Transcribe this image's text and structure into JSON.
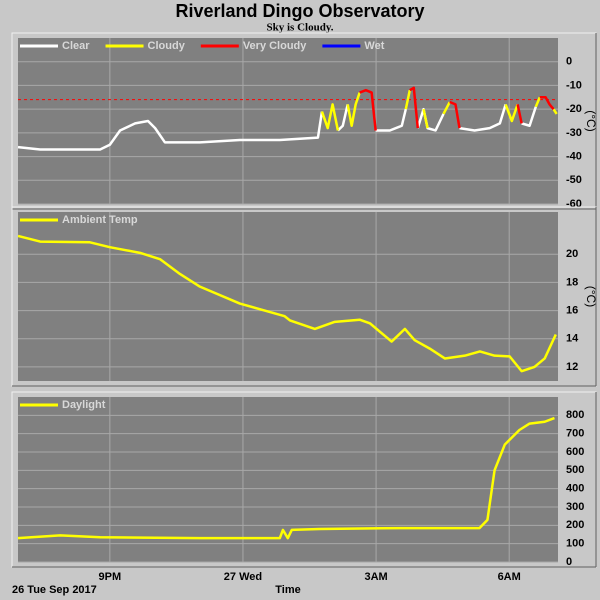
{
  "title": "Riverland Dingo Observatory",
  "subtitle": "Sky is Cloudy.",
  "chart_data": [
    {
      "type": "line",
      "ylabel": "(°C)",
      "ylim": [
        -60,
        10
      ],
      "yticks": [
        0,
        -10,
        -20,
        -30,
        -40,
        -50,
        -60
      ],
      "grid": true,
      "threshold": -16,
      "threshold_color": "#ff0000",
      "x": [
        18.93,
        19.43,
        20.1,
        20.78,
        21.0,
        21.23,
        21.57,
        21.86,
        22.02,
        22.24,
        23.03,
        23.93,
        24.83,
        25.69,
        25.78,
        25.91,
        26.02,
        26.14,
        26.25,
        26.36,
        26.45,
        26.54,
        26.63,
        26.77,
        26.9,
        26.99,
        27.31,
        27.58,
        27.67,
        27.76,
        27.85,
        27.94,
        28.07,
        28.16,
        28.34,
        28.52,
        28.66,
        28.79,
        28.88,
        29.22,
        29.56,
        29.79,
        29.92,
        30.06,
        30.19,
        30.28,
        30.46,
        30.6,
        30.69,
        30.82,
        30.91,
        31.0,
        31.07
      ],
      "series": [
        {
          "name": "Clear",
          "color": "#ffffff",
          "values": [
            -36,
            -37,
            -37,
            -37,
            -35,
            -29,
            -26,
            -25,
            -28,
            -34,
            -34,
            -33,
            -33,
            -32,
            -21,
            null,
            null,
            -29,
            -27,
            -18,
            null,
            null,
            null,
            null,
            null,
            -29,
            -29,
            -27,
            -20,
            null,
            null,
            -28,
            -20,
            -28,
            -29,
            -22,
            null,
            null,
            -28,
            -29,
            -28,
            -26,
            -18,
            null,
            null,
            -26,
            -27,
            -19,
            null,
            null,
            null,
            null,
            null
          ]
        },
        {
          "name": "Cloudy",
          "color": "#ffff00",
          "values": [
            null,
            null,
            null,
            null,
            null,
            null,
            null,
            null,
            null,
            null,
            null,
            null,
            null,
            null,
            -21,
            -28,
            -18,
            -29,
            null,
            -18,
            -27,
            -18,
            -13,
            null,
            null,
            null,
            null,
            null,
            -20,
            -12,
            null,
            null,
            -20,
            -28,
            null,
            -22,
            -17,
            null,
            null,
            null,
            null,
            null,
            -18,
            -25,
            -18,
            null,
            null,
            -19,
            -15,
            null,
            null,
            -20,
            -22
          ]
        },
        {
          "name": "Very Cloudy",
          "color": "#ff0000",
          "values": [
            null,
            null,
            null,
            null,
            null,
            null,
            null,
            null,
            null,
            null,
            null,
            null,
            null,
            null,
            null,
            null,
            null,
            null,
            null,
            null,
            null,
            null,
            -13,
            -12,
            -13,
            -29,
            null,
            null,
            null,
            -12,
            -11,
            -28,
            null,
            null,
            null,
            null,
            -17,
            -18,
            -28,
            null,
            null,
            null,
            null,
            null,
            -18,
            -26,
            null,
            null,
            -15,
            -15,
            -18,
            -20,
            null
          ]
        },
        {
          "name": "Wet",
          "color": "#0000ff",
          "values": [
            null,
            null,
            null,
            null,
            null,
            null,
            null,
            null,
            null,
            null,
            null,
            null,
            null,
            null,
            null,
            null,
            null,
            null,
            null,
            null,
            null,
            null,
            null,
            null,
            null,
            null,
            null,
            null,
            null,
            null,
            null,
            null,
            null,
            null,
            null,
            null,
            null,
            null,
            null,
            null,
            null,
            null,
            null,
            null,
            null,
            null,
            null,
            null,
            null,
            null,
            null,
            null,
            null
          ]
        }
      ]
    },
    {
      "type": "line",
      "ylabel": "(°C)",
      "ylim": [
        11,
        23
      ],
      "yticks": [
        12,
        14,
        16,
        18,
        20
      ],
      "grid": true,
      "x": [
        18.93,
        19.43,
        20.55,
        21.0,
        21.68,
        22.13,
        22.58,
        23.03,
        23.93,
        24.49,
        24.94,
        25.06,
        25.62,
        26.07,
        26.63,
        26.86,
        27.2,
        27.35,
        27.65,
        27.87,
        28.21,
        28.55,
        29.0,
        29.34,
        29.67,
        30.01,
        30.28,
        30.57,
        30.8,
        31.05
      ],
      "series": [
        {
          "name": "Ambient Temp",
          "color": "#ffff00",
          "values": [
            21.3,
            20.9,
            20.85,
            20.5,
            20.1,
            19.65,
            18.6,
            17.7,
            16.5,
            16.0,
            15.6,
            15.3,
            14.7,
            15.2,
            15.35,
            15.1,
            14.2,
            13.8,
            14.7,
            13.9,
            13.3,
            12.6,
            12.8,
            13.1,
            12.8,
            12.75,
            11.7,
            12.0,
            12.6,
            14.3
          ]
        }
      ]
    },
    {
      "type": "line",
      "ylim": [
        0,
        900
      ],
      "yticks": [
        0,
        100,
        200,
        300,
        400,
        500,
        600,
        700,
        800
      ],
      "grid": true,
      "xlim": [
        18.93,
        31.1
      ],
      "xticks": [
        {
          "value": 21,
          "label": "9PM"
        },
        {
          "value": 24,
          "label": "27 Wed"
        },
        {
          "value": 27,
          "label": "3AM"
        },
        {
          "value": 30,
          "label": "6AM"
        }
      ],
      "xlabel": "Time",
      "annotation": "26 Tue Sep 2017",
      "x": [
        18.93,
        19.88,
        20.78,
        23.03,
        24.83,
        24.9,
        25.01,
        25.1,
        25.73,
        27.53,
        29.33,
        29.51,
        29.67,
        29.9,
        30.23,
        30.46,
        30.8,
        31.02
      ],
      "series": [
        {
          "name": "Daylight",
          "color": "#ffff00",
          "values": [
            130,
            145,
            135,
            130,
            130,
            175,
            130,
            175,
            180,
            185,
            185,
            230,
            500,
            640,
            720,
            755,
            765,
            785
          ]
        }
      ]
    }
  ]
}
